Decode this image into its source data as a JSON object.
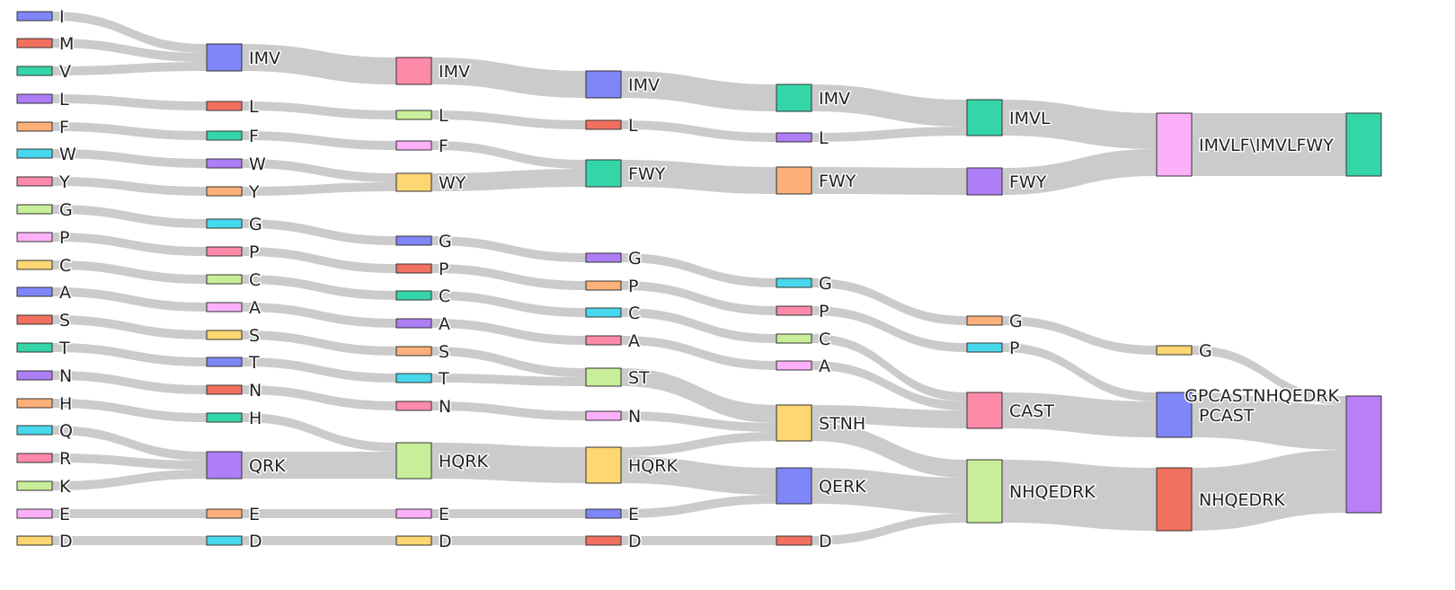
{
  "chart_data": {
    "type": "sankey",
    "title": "",
    "columns": [
      [
        {
          "id": "c0-I",
          "label": "I",
          "color": "#7f86f7"
        },
        {
          "id": "c0-M",
          "label": "M",
          "color": "#f2705f"
        },
        {
          "id": "c0-V",
          "label": "V",
          "color": "#34d6a8"
        },
        {
          "id": "c0-L",
          "label": "L",
          "color": "#ad7ef5"
        },
        {
          "id": "c0-F",
          "label": "F",
          "color": "#feb07a"
        },
        {
          "id": "c0-W",
          "label": "W",
          "color": "#46d8ec"
        },
        {
          "id": "c0-Y",
          "label": "Y",
          "color": "#fc8aa8"
        },
        {
          "id": "c0-G",
          "label": "G",
          "color": "#c9ee9a"
        },
        {
          "id": "c0-P",
          "label": "P",
          "color": "#fdb0fa"
        },
        {
          "id": "c0-C",
          "label": "C",
          "color": "#fed672"
        },
        {
          "id": "c0-A",
          "label": "A",
          "color": "#7f86f7"
        },
        {
          "id": "c0-S",
          "label": "S",
          "color": "#f2705f"
        },
        {
          "id": "c0-T",
          "label": "T",
          "color": "#34d6a8"
        },
        {
          "id": "c0-N",
          "label": "N",
          "color": "#ad7ef5"
        },
        {
          "id": "c0-H",
          "label": "H",
          "color": "#feb07a"
        },
        {
          "id": "c0-Q",
          "label": "Q",
          "color": "#46d8ec"
        },
        {
          "id": "c0-R",
          "label": "R",
          "color": "#fc8aa8"
        },
        {
          "id": "c0-K",
          "label": "K",
          "color": "#c9ee9a"
        },
        {
          "id": "c0-E",
          "label": "E",
          "color": "#fdb0fa"
        },
        {
          "id": "c0-D",
          "label": "D",
          "color": "#fed672"
        }
      ],
      [
        {
          "id": "c1-IMV",
          "label": "IMV",
          "color": "#7f86f7"
        },
        {
          "id": "c1-L",
          "label": "L",
          "color": "#f2705f"
        },
        {
          "id": "c1-F",
          "label": "F",
          "color": "#34d6a8"
        },
        {
          "id": "c1-W",
          "label": "W",
          "color": "#ad7ef5"
        },
        {
          "id": "c1-Y",
          "label": "Y",
          "color": "#feb07a"
        },
        {
          "id": "c1-G",
          "label": "G",
          "color": "#46d8ec"
        },
        {
          "id": "c1-P",
          "label": "P",
          "color": "#fc8aa8"
        },
        {
          "id": "c1-C",
          "label": "C",
          "color": "#c9ee9a"
        },
        {
          "id": "c1-A",
          "label": "A",
          "color": "#fdb0fa"
        },
        {
          "id": "c1-S",
          "label": "S",
          "color": "#fed672"
        },
        {
          "id": "c1-T",
          "label": "T",
          "color": "#7f86f7"
        },
        {
          "id": "c1-N",
          "label": "N",
          "color": "#f2705f"
        },
        {
          "id": "c1-H",
          "label": "H",
          "color": "#34d6a8"
        },
        {
          "id": "c1-QRK",
          "label": "QRK",
          "color": "#ad7ef5"
        },
        {
          "id": "c1-E",
          "label": "E",
          "color": "#feb07a"
        },
        {
          "id": "c1-D",
          "label": "D",
          "color": "#46d8ec"
        }
      ],
      [
        {
          "id": "c2-IMV",
          "label": "IMV",
          "color": "#fc8aa8"
        },
        {
          "id": "c2-L",
          "label": "L",
          "color": "#c9ee9a"
        },
        {
          "id": "c2-F",
          "label": "F",
          "color": "#fdb0fa"
        },
        {
          "id": "c2-WY",
          "label": "WY",
          "color": "#fed672"
        },
        {
          "id": "c2-G",
          "label": "G",
          "color": "#7f86f7"
        },
        {
          "id": "c2-P",
          "label": "P",
          "color": "#f2705f"
        },
        {
          "id": "c2-C",
          "label": "C",
          "color": "#34d6a8"
        },
        {
          "id": "c2-A",
          "label": "A",
          "color": "#ad7ef5"
        },
        {
          "id": "c2-S",
          "label": "S",
          "color": "#feb07a"
        },
        {
          "id": "c2-T",
          "label": "T",
          "color": "#46d8ec"
        },
        {
          "id": "c2-N",
          "label": "N",
          "color": "#fc8aa8"
        },
        {
          "id": "c2-HQRK",
          "label": "HQRK",
          "color": "#c9ee9a"
        },
        {
          "id": "c2-E",
          "label": "E",
          "color": "#fdb0fa"
        },
        {
          "id": "c2-D",
          "label": "D",
          "color": "#fed672"
        }
      ],
      [
        {
          "id": "c3-IMV",
          "label": "IMV",
          "color": "#7f86f7"
        },
        {
          "id": "c3-L",
          "label": "L",
          "color": "#f2705f"
        },
        {
          "id": "c3-FWY",
          "label": "FWY",
          "color": "#34d6a8"
        },
        {
          "id": "c3-G",
          "label": "G",
          "color": "#ad7ef5"
        },
        {
          "id": "c3-P",
          "label": "P",
          "color": "#feb07a"
        },
        {
          "id": "c3-C",
          "label": "C",
          "color": "#46d8ec"
        },
        {
          "id": "c3-A",
          "label": "A",
          "color": "#fc8aa8"
        },
        {
          "id": "c3-ST",
          "label": "ST",
          "color": "#c9ee9a"
        },
        {
          "id": "c3-N",
          "label": "N",
          "color": "#fdb0fa"
        },
        {
          "id": "c3-HQRK",
          "label": "HQRK",
          "color": "#fed672"
        },
        {
          "id": "c3-E",
          "label": "E",
          "color": "#7f86f7"
        },
        {
          "id": "c3-D",
          "label": "D",
          "color": "#f2705f"
        }
      ],
      [
        {
          "id": "c4-IMV",
          "label": "IMV",
          "color": "#34d6a8"
        },
        {
          "id": "c4-L",
          "label": "L",
          "color": "#ad7ef5"
        },
        {
          "id": "c4-FWY",
          "label": "FWY",
          "color": "#feb07a"
        },
        {
          "id": "c4-G",
          "label": "G",
          "color": "#46d8ec"
        },
        {
          "id": "c4-P",
          "label": "P",
          "color": "#fc8aa8"
        },
        {
          "id": "c4-C",
          "label": "C",
          "color": "#c9ee9a"
        },
        {
          "id": "c4-A",
          "label": "A",
          "color": "#fdb0fa"
        },
        {
          "id": "c4-STNH",
          "label": "STNH",
          "color": "#fed672"
        },
        {
          "id": "c4-QERK",
          "label": "QERK",
          "color": "#7f86f7"
        },
        {
          "id": "c4-D",
          "label": "D",
          "color": "#f2705f"
        }
      ],
      [
        {
          "id": "c5-IMVL",
          "label": "IMVL",
          "color": "#34d6a8"
        },
        {
          "id": "c5-FWY",
          "label": "FWY",
          "color": "#ad7ef5"
        },
        {
          "id": "c5-G",
          "label": "G",
          "color": "#feb07a"
        },
        {
          "id": "c5-P",
          "label": "P",
          "color": "#46d8ec"
        },
        {
          "id": "c5-CAST",
          "label": "CAST",
          "color": "#fc8aa8"
        },
        {
          "id": "c5-NHQEDRK",
          "label": "NHQEDRK",
          "color": "#c9ee9a"
        }
      ],
      [
        {
          "id": "c6-IMVLFWY",
          "label": "IMVLF\\IMVLFWY",
          "color": "#fdb0fa"
        },
        {
          "id": "c6-G",
          "label": "G",
          "color": "#fed672"
        },
        {
          "id": "c6-PCAST",
          "label": "PCAST",
          "color": "#7f86f7"
        },
        {
          "id": "c6-NHQEDRK",
          "label": "NHQEDRK",
          "color": "#f2705f"
        }
      ],
      [
        {
          "id": "c7-top",
          "label": "",
          "color": "#34d6a8"
        },
        {
          "id": "c7-bottom",
          "label": "GPCASTNHQEDRK",
          "color": "#ba7ef5"
        }
      ]
    ],
    "links": [
      [
        "c0-I",
        "c1-IMV",
        1
      ],
      [
        "c0-M",
        "c1-IMV",
        1
      ],
      [
        "c0-V",
        "c1-IMV",
        1
      ],
      [
        "c0-L",
        "c1-L",
        1
      ],
      [
        "c0-F",
        "c1-F",
        1
      ],
      [
        "c0-W",
        "c1-W",
        1
      ],
      [
        "c0-Y",
        "c1-Y",
        1
      ],
      [
        "c0-G",
        "c1-G",
        1
      ],
      [
        "c0-P",
        "c1-P",
        1
      ],
      [
        "c0-C",
        "c1-C",
        1
      ],
      [
        "c0-A",
        "c1-A",
        1
      ],
      [
        "c0-S",
        "c1-S",
        1
      ],
      [
        "c0-T",
        "c1-T",
        1
      ],
      [
        "c0-N",
        "c1-N",
        1
      ],
      [
        "c0-H",
        "c1-H",
        1
      ],
      [
        "c0-Q",
        "c1-QRK",
        1
      ],
      [
        "c0-R",
        "c1-QRK",
        1
      ],
      [
        "c0-K",
        "c1-QRK",
        1
      ],
      [
        "c0-E",
        "c1-E",
        1
      ],
      [
        "c0-D",
        "c1-D",
        1
      ],
      [
        "c1-IMV",
        "c2-IMV",
        3
      ],
      [
        "c1-L",
        "c2-L",
        1
      ],
      [
        "c1-F",
        "c2-F",
        1
      ],
      [
        "c1-W",
        "c2-WY",
        1
      ],
      [
        "c1-Y",
        "c2-WY",
        1
      ],
      [
        "c1-G",
        "c2-G",
        1
      ],
      [
        "c1-P",
        "c2-P",
        1
      ],
      [
        "c1-C",
        "c2-C",
        1
      ],
      [
        "c1-A",
        "c2-A",
        1
      ],
      [
        "c1-S",
        "c2-S",
        1
      ],
      [
        "c1-T",
        "c2-T",
        1
      ],
      [
        "c1-N",
        "c2-N",
        1
      ],
      [
        "c1-H",
        "c2-HQRK",
        1
      ],
      [
        "c1-QRK",
        "c2-HQRK",
        3
      ],
      [
        "c1-E",
        "c2-E",
        1
      ],
      [
        "c1-D",
        "c2-D",
        1
      ],
      [
        "c2-IMV",
        "c3-IMV",
        3
      ],
      [
        "c2-L",
        "c3-L",
        1
      ],
      [
        "c2-F",
        "c3-FWY",
        1
      ],
      [
        "c2-WY",
        "c3-FWY",
        2
      ],
      [
        "c2-G",
        "c3-G",
        1
      ],
      [
        "c2-P",
        "c3-P",
        1
      ],
      [
        "c2-C",
        "c3-C",
        1
      ],
      [
        "c2-A",
        "c3-A",
        1
      ],
      [
        "c2-S",
        "c3-ST",
        1
      ],
      [
        "c2-T",
        "c3-ST",
        1
      ],
      [
        "c2-N",
        "c3-N",
        1
      ],
      [
        "c2-HQRK",
        "c3-HQRK",
        4
      ],
      [
        "c2-E",
        "c3-E",
        1
      ],
      [
        "c2-D",
        "c3-D",
        1
      ],
      [
        "c3-IMV",
        "c4-IMV",
        3
      ],
      [
        "c3-L",
        "c4-L",
        1
      ],
      [
        "c3-FWY",
        "c4-FWY",
        3
      ],
      [
        "c3-G",
        "c4-G",
        1
      ],
      [
        "c3-P",
        "c4-P",
        1
      ],
      [
        "c3-C",
        "c4-C",
        1
      ],
      [
        "c3-A",
        "c4-A",
        1
      ],
      [
        "c3-ST",
        "c4-STNH",
        2
      ],
      [
        "c3-N",
        "c4-STNH",
        1
      ],
      [
        "c3-HQRK",
        "c4-STNH",
        1
      ],
      [
        "c3-HQRK",
        "c4-QERK",
        3
      ],
      [
        "c3-E",
        "c4-QERK",
        1
      ],
      [
        "c3-D",
        "c4-D",
        1
      ],
      [
        "c4-IMV",
        "c5-IMVL",
        3
      ],
      [
        "c4-L",
        "c5-IMVL",
        1
      ],
      [
        "c4-FWY",
        "c5-FWY",
        3
      ],
      [
        "c4-G",
        "c5-G",
        1
      ],
      [
        "c4-P",
        "c5-P",
        1
      ],
      [
        "c4-C",
        "c5-CAST",
        1
      ],
      [
        "c4-A",
        "c5-CAST",
        1
      ],
      [
        "c4-STNH",
        "c5-CAST",
        2
      ],
      [
        "c4-STNH",
        "c5-NHQEDRK",
        2
      ],
      [
        "c4-QERK",
        "c5-NHQEDRK",
        4
      ],
      [
        "c4-D",
        "c5-NHQEDRK",
        1
      ],
      [
        "c5-IMVL",
        "c6-IMVLFWY",
        4
      ],
      [
        "c5-FWY",
        "c6-IMVLFWY",
        3
      ],
      [
        "c5-G",
        "c6-G",
        1
      ],
      [
        "c5-P",
        "c6-PCAST",
        1
      ],
      [
        "c5-CAST",
        "c6-PCAST",
        4
      ],
      [
        "c5-NHQEDRK",
        "c6-NHQEDRK",
        7
      ],
      [
        "c6-IMVLFWY",
        "c7-top",
        7
      ],
      [
        "c6-G",
        "c7-bottom",
        1
      ],
      [
        "c6-PCAST",
        "c7-bottom",
        5
      ],
      [
        "c6-NHQEDRK",
        "c7-bottom",
        7
      ]
    ]
  }
}
